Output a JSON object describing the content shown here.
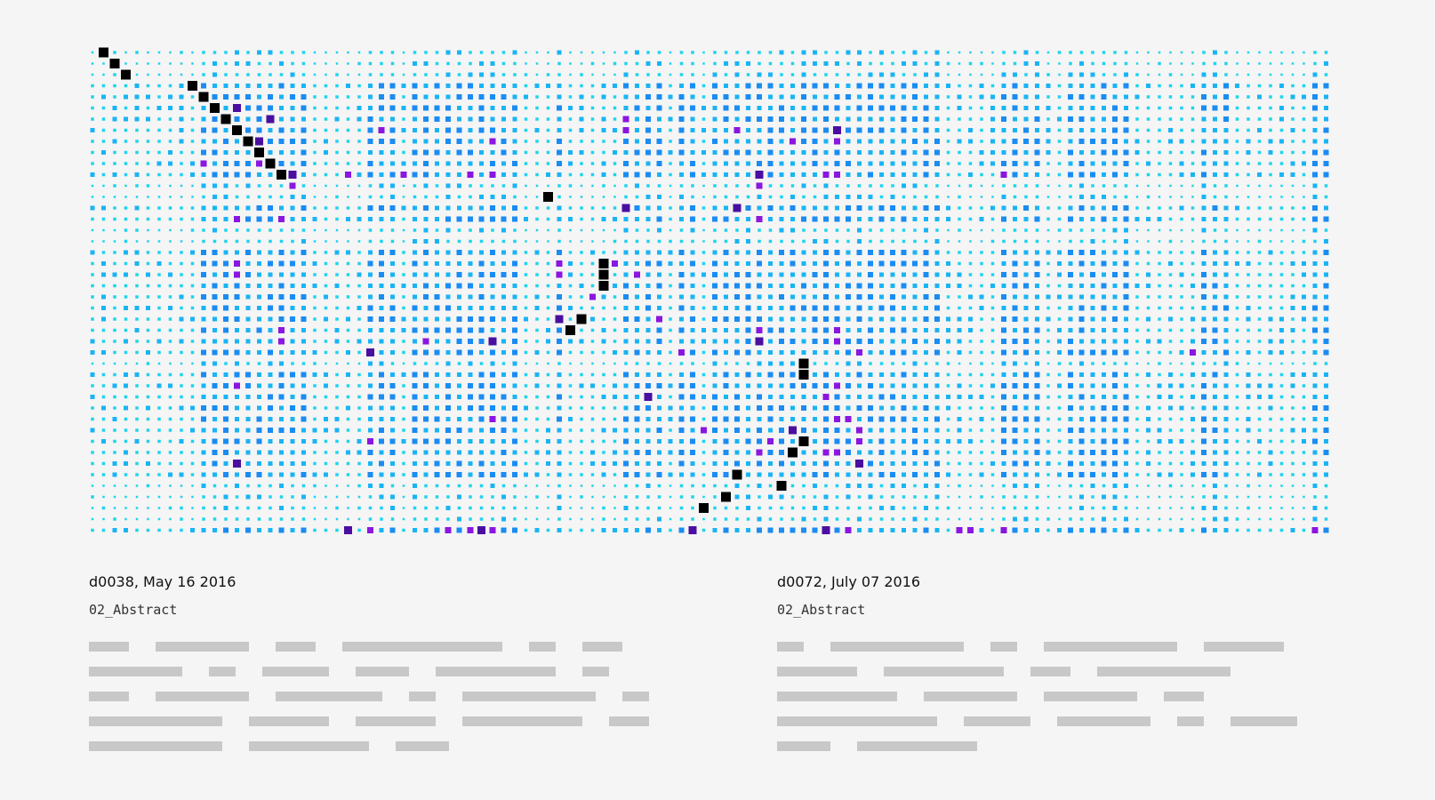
{
  "chart_data": {
    "type": "heatmap",
    "rows": 44,
    "cols": 112,
    "colors": {
      "background": "#f4f5f4",
      "level_1": "#1ed3f0",
      "level_2": "#1ab4f5",
      "level_3": "#1a8cf2",
      "level_4": "#8a16e0",
      "level_5": "#4a0fa0",
      "diagonal": "#000000"
    },
    "diagonal_cells": [
      [
        0,
        1
      ],
      [
        1,
        2
      ],
      [
        2,
        3
      ],
      [
        3,
        9
      ],
      [
        4,
        10
      ],
      [
        5,
        11
      ],
      [
        6,
        12
      ],
      [
        7,
        13
      ],
      [
        8,
        14
      ],
      [
        9,
        15
      ],
      [
        10,
        16
      ],
      [
        11,
        17
      ],
      [
        13,
        41
      ],
      [
        19,
        46
      ],
      [
        20,
        46
      ],
      [
        21,
        46
      ],
      [
        24,
        44
      ],
      [
        25,
        43
      ],
      [
        28,
        64
      ],
      [
        29,
        64
      ],
      [
        35,
        64
      ],
      [
        36,
        63
      ],
      [
        38,
        58
      ],
      [
        39,
        62
      ],
      [
        40,
        57
      ],
      [
        41,
        55
      ]
    ],
    "highlight_cells": [
      [
        5,
        13
      ],
      [
        6,
        12
      ],
      [
        6,
        16
      ],
      [
        6,
        48
      ],
      [
        7,
        13
      ],
      [
        7,
        26
      ],
      [
        7,
        48
      ],
      [
        7,
        58
      ],
      [
        7,
        67
      ],
      [
        8,
        15
      ],
      [
        8,
        36
      ],
      [
        8,
        63
      ],
      [
        8,
        67
      ],
      [
        10,
        10
      ],
      [
        10,
        15
      ],
      [
        11,
        17
      ],
      [
        11,
        18
      ],
      [
        11,
        23
      ],
      [
        11,
        28
      ],
      [
        11,
        34
      ],
      [
        11,
        36
      ],
      [
        11,
        60
      ],
      [
        11,
        66
      ],
      [
        11,
        67
      ],
      [
        11,
        82
      ],
      [
        12,
        18
      ],
      [
        12,
        60
      ],
      [
        14,
        48
      ],
      [
        14,
        58
      ],
      [
        15,
        13
      ],
      [
        15,
        17
      ],
      [
        15,
        60
      ],
      [
        19,
        13
      ],
      [
        19,
        42
      ],
      [
        19,
        47
      ],
      [
        20,
        13
      ],
      [
        20,
        42
      ],
      [
        20,
        49
      ],
      [
        22,
        45
      ],
      [
        24,
        42
      ],
      [
        24,
        51
      ],
      [
        25,
        17
      ],
      [
        25,
        60
      ],
      [
        25,
        67
      ],
      [
        26,
        17
      ],
      [
        26,
        30
      ],
      [
        26,
        36
      ],
      [
        26,
        60
      ],
      [
        26,
        67
      ],
      [
        27,
        25
      ],
      [
        27,
        53
      ],
      [
        27,
        69
      ],
      [
        27,
        99
      ],
      [
        30,
        13
      ],
      [
        30,
        67
      ],
      [
        31,
        50
      ],
      [
        31,
        66
      ],
      [
        33,
        36
      ],
      [
        33,
        67
      ],
      [
        33,
        68
      ],
      [
        34,
        55
      ],
      [
        34,
        63
      ],
      [
        34,
        69
      ],
      [
        35,
        25
      ],
      [
        35,
        61
      ],
      [
        35,
        69
      ],
      [
        36,
        60
      ],
      [
        36,
        66
      ],
      [
        36,
        67
      ],
      [
        37,
        13
      ],
      [
        37,
        69
      ],
      [
        43,
        23
      ],
      [
        43,
        25
      ],
      [
        43,
        32
      ],
      [
        43,
        34
      ],
      [
        43,
        35
      ],
      [
        43,
        36
      ],
      [
        43,
        54
      ],
      [
        43,
        66
      ],
      [
        43,
        68
      ],
      [
        43,
        78
      ],
      [
        43,
        79
      ],
      [
        43,
        82
      ],
      [
        43,
        110
      ]
    ],
    "strong_rows": [
      3,
      4,
      5,
      6,
      7,
      8,
      9,
      10,
      11,
      14,
      15,
      18,
      19,
      20,
      21,
      22,
      23,
      24,
      25,
      26,
      27,
      29,
      30,
      31,
      32,
      33,
      34,
      35,
      36,
      37,
      38,
      43
    ],
    "strong_cols": [
      10,
      11,
      12,
      13,
      14,
      15,
      16,
      17,
      18,
      19,
      25,
      26,
      27,
      29,
      30,
      31,
      32,
      33,
      34,
      35,
      36,
      37,
      38,
      42,
      48,
      49,
      50,
      51,
      53,
      54,
      56,
      57,
      58,
      59,
      60,
      61,
      62,
      63,
      64,
      65,
      66,
      67,
      68,
      69,
      70,
      71,
      72,
      73,
      74,
      75,
      76,
      82,
      83,
      84,
      85,
      88,
      89,
      90,
      91,
      92,
      93,
      100,
      101,
      102,
      110,
      111
    ]
  },
  "panels": [
    {
      "title": "d0038, May 16 2016",
      "subtitle": "02_Abstract"
    },
    {
      "title": "d0072, July 07 2016",
      "subtitle": "02_Abstract"
    }
  ]
}
